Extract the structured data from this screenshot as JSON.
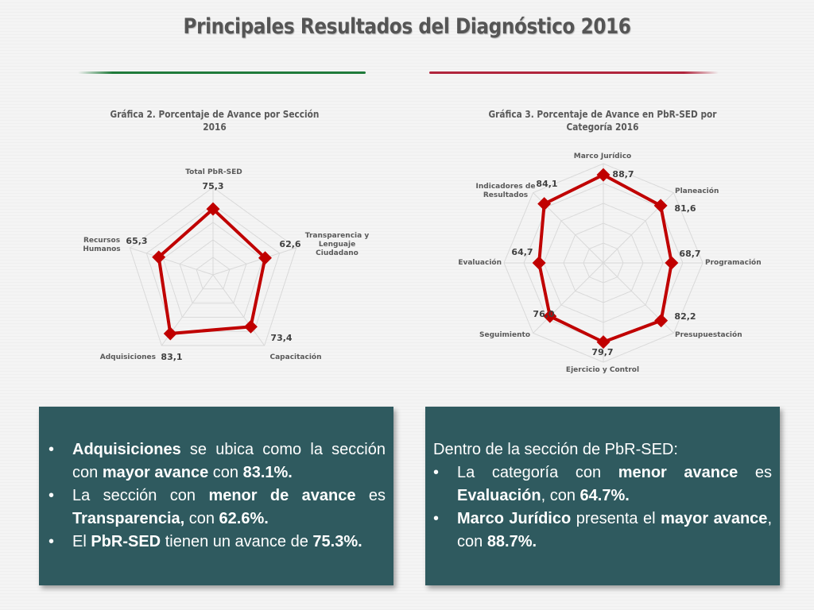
{
  "page": {
    "title": "Principales Resultados del Diagnóstico 2016"
  },
  "colors": {
    "accent_green": "#1f7a3a",
    "accent_red": "#b0243c",
    "series_red": "#c00000",
    "panel_bg": "#2f5a5f"
  },
  "chart_data": [
    {
      "type": "radar",
      "title": "Gráfica 2. Porcentaje de Avance por Sección 2016",
      "categories": [
        "Total PbR-SED",
        "Transparencia y Lenguaje Ciudadano",
        "Capacitación",
        "Adquisiciones",
        "Recursos Humanos"
      ],
      "values": [
        75.3,
        62.6,
        73.4,
        83.1,
        65.3
      ],
      "value_labels": [
        "75,3",
        "62,6",
        "73,4",
        "83,1",
        "65,3"
      ],
      "range": [
        0,
        100
      ],
      "grid": true
    },
    {
      "type": "radar",
      "title": "Gráfica 3. Porcentaje de Avance en PbR-SED por Categoría 2016",
      "categories": [
        "Marco Jurídico",
        "Planeación",
        "Programación",
        "Presupuestación",
        "Ejercicio y Control",
        "Seguimiento",
        "Evaluación",
        "Indicadores de Resultados"
      ],
      "values": [
        88.7,
        81.6,
        68.7,
        82.2,
        79.7,
        76.0,
        64.7,
        84.1
      ],
      "value_labels": [
        "88,7",
        "81,6",
        "68,7",
        "82,2",
        "79,7",
        "76,0",
        "64,7",
        "84,1"
      ],
      "range": [
        0,
        100
      ],
      "grid": true
    }
  ],
  "panel_left": {
    "items": [
      {
        "b1": "Adquisiciones",
        "t1": " se ubica como la sección con ",
        "b2": "mayor avance",
        "t2": " con ",
        "b3": "83.1%."
      },
      {
        "t1": "La sección con ",
        "b1": "menor de avance",
        "t2": " es ",
        "b2": "Transparencia,",
        "t3": " con ",
        "b3": "62.6%."
      },
      {
        "t1": "El ",
        "b1": "PbR-SED",
        "t2": " tienen un avance de ",
        "b2": "75.3%."
      }
    ]
  },
  "panel_right": {
    "intro": "Dentro de la sección de PbR-SED:",
    "items": [
      {
        "t1": "La categoría con ",
        "b1": "menor avance",
        "t2": " es ",
        "b2": "Evaluación",
        "t3": ", con ",
        "b3": "64.7%."
      },
      {
        "b1": "Marco Jurídico",
        "t1": " presenta el ",
        "b2": "mayor avance",
        "t2": ", con ",
        "b3": "88.7%."
      }
    ]
  }
}
